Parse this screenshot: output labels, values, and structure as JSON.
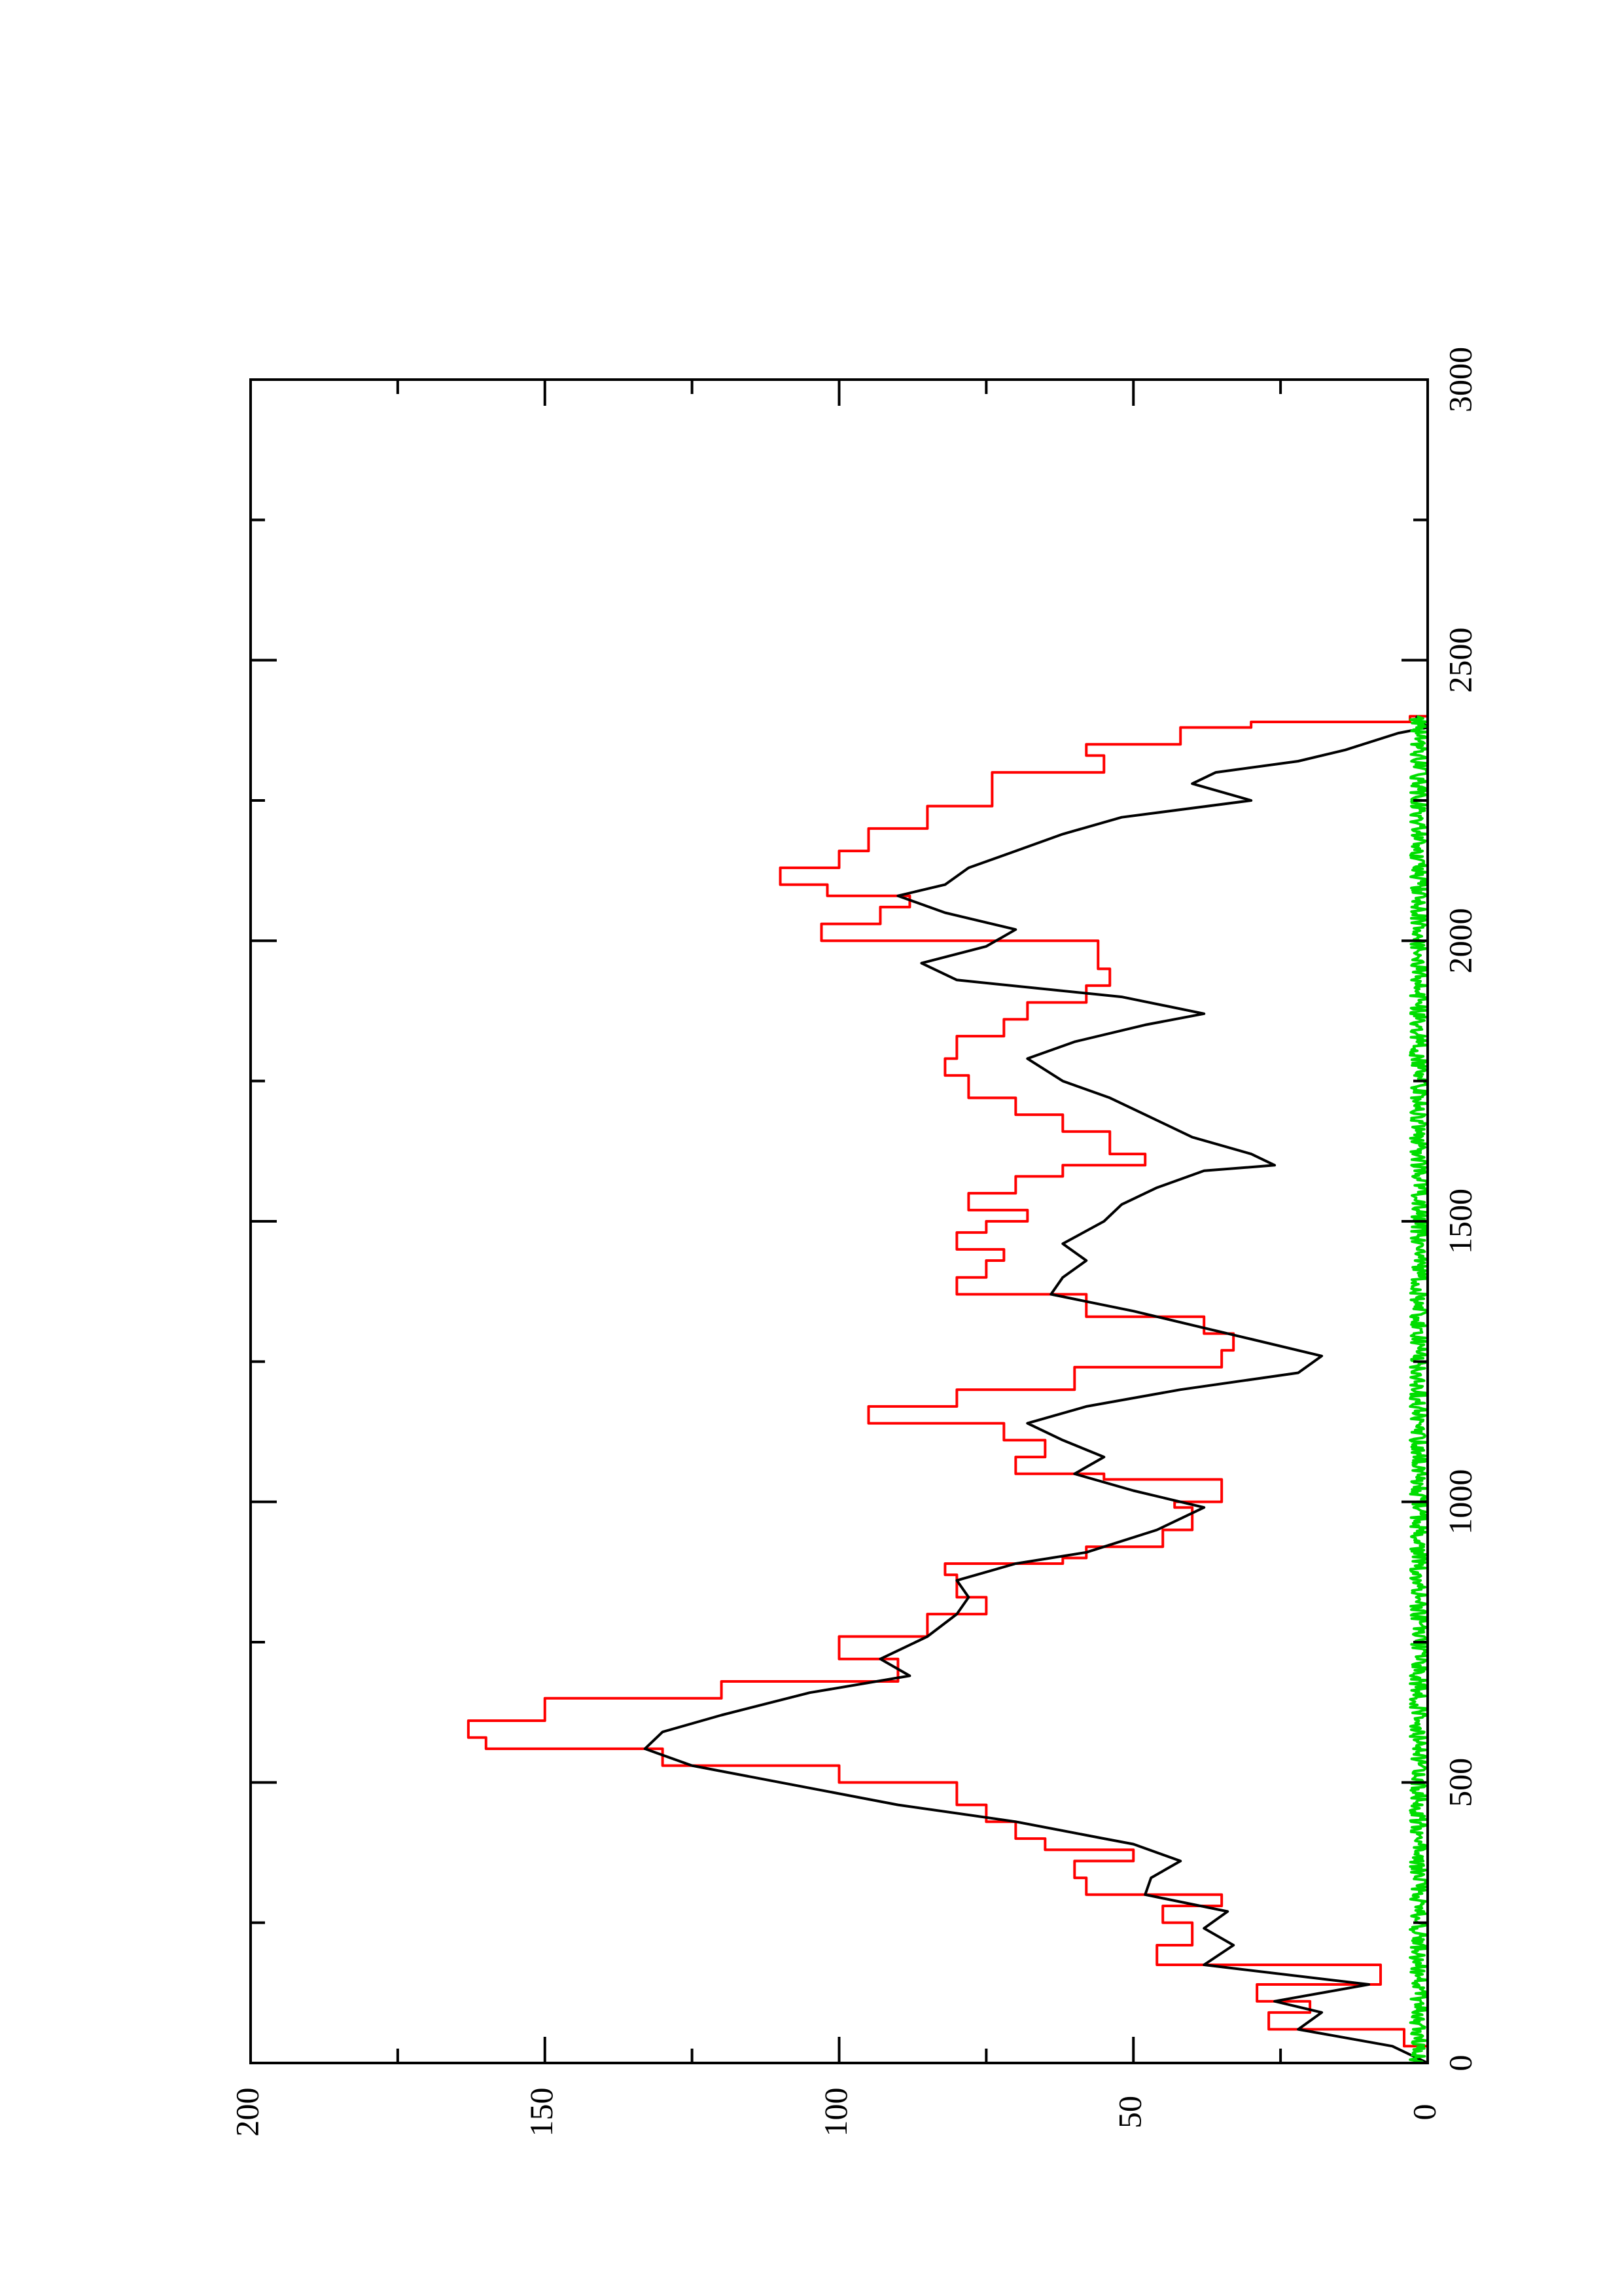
{
  "chart_data": {
    "type": "line",
    "orientation": "rotated-90-ccw",
    "title": "",
    "xlabel": "",
    "ylabel": "",
    "xlim": [
      0,
      3000
    ],
    "ylim": [
      0,
      200
    ],
    "x_ticks": [
      0,
      500,
      1000,
      1500,
      2000,
      2500,
      3000
    ],
    "y_ticks": [
      0,
      50,
      100,
      150,
      200
    ],
    "x_minor_step": 250,
    "y_minor_step": 25,
    "grid": false,
    "series": [
      {
        "color": "#ff0000",
        "style": "step",
        "points": [
          [
            0,
            0
          ],
          [
            30,
            4
          ],
          [
            60,
            27
          ],
          [
            90,
            20
          ],
          [
            110,
            29
          ],
          [
            140,
            8
          ],
          [
            175,
            46
          ],
          [
            210,
            40
          ],
          [
            250,
            45
          ],
          [
            280,
            35
          ],
          [
            300,
            58
          ],
          [
            330,
            60
          ],
          [
            360,
            50
          ],
          [
            380,
            65
          ],
          [
            400,
            70
          ],
          [
            430,
            75
          ],
          [
            460,
            80
          ],
          [
            500,
            100
          ],
          [
            530,
            130
          ],
          [
            560,
            160
          ],
          [
            580,
            163
          ],
          [
            610,
            150
          ],
          [
            650,
            120
          ],
          [
            680,
            90
          ],
          [
            720,
            100
          ],
          [
            760,
            85
          ],
          [
            800,
            75
          ],
          [
            830,
            80
          ],
          [
            870,
            82
          ],
          [
            890,
            62
          ],
          [
            900,
            58
          ],
          [
            920,
            45
          ],
          [
            950,
            40
          ],
          [
            990,
            43
          ],
          [
            1000,
            35
          ],
          [
            1040,
            55
          ],
          [
            1050,
            70
          ],
          [
            1080,
            65
          ],
          [
            1110,
            72
          ],
          [
            1140,
            95
          ],
          [
            1170,
            80
          ],
          [
            1200,
            60
          ],
          [
            1240,
            35
          ],
          [
            1270,
            33
          ],
          [
            1300,
            38
          ],
          [
            1330,
            58
          ],
          [
            1370,
            80
          ],
          [
            1400,
            75
          ],
          [
            1430,
            72
          ],
          [
            1450,
            80
          ],
          [
            1480,
            75
          ],
          [
            1500,
            68
          ],
          [
            1520,
            78
          ],
          [
            1550,
            70
          ],
          [
            1580,
            62
          ],
          [
            1600,
            48
          ],
          [
            1620,
            54
          ],
          [
            1660,
            62
          ],
          [
            1690,
            70
          ],
          [
            1720,
            78
          ],
          [
            1760,
            82
          ],
          [
            1790,
            80
          ],
          [
            1830,
            72
          ],
          [
            1860,
            68
          ],
          [
            1890,
            58
          ],
          [
            1920,
            54
          ],
          [
            1950,
            56
          ],
          [
            2000,
            103
          ],
          [
            2030,
            93
          ],
          [
            2060,
            88
          ],
          [
            2080,
            102
          ],
          [
            2100,
            110
          ],
          [
            2130,
            100
          ],
          [
            2160,
            95
          ],
          [
            2200,
            85
          ],
          [
            2240,
            74
          ],
          [
            2270,
            74
          ],
          [
            2300,
            55
          ],
          [
            2330,
            58
          ],
          [
            2350,
            42
          ],
          [
            2380,
            30
          ],
          [
            2390,
            3
          ],
          [
            2400,
            0
          ]
        ]
      },
      {
        "color": "#000000",
        "style": "line",
        "points": [
          [
            0,
            0
          ],
          [
            30,
            6
          ],
          [
            60,
            22
          ],
          [
            90,
            18
          ],
          [
            110,
            26
          ],
          [
            140,
            10
          ],
          [
            175,
            38
          ],
          [
            210,
            33
          ],
          [
            240,
            38
          ],
          [
            270,
            34
          ],
          [
            300,
            48
          ],
          [
            330,
            47
          ],
          [
            360,
            42
          ],
          [
            390,
            50
          ],
          [
            400,
            55
          ],
          [
            430,
            70
          ],
          [
            460,
            90
          ],
          [
            500,
            110
          ],
          [
            530,
            125
          ],
          [
            560,
            133
          ],
          [
            590,
            130
          ],
          [
            620,
            120
          ],
          [
            660,
            105
          ],
          [
            690,
            88
          ],
          [
            720,
            93
          ],
          [
            760,
            85
          ],
          [
            800,
            80
          ],
          [
            830,
            78
          ],
          [
            860,
            80
          ],
          [
            890,
            70
          ],
          [
            910,
            58
          ],
          [
            950,
            46
          ],
          [
            990,
            38
          ],
          [
            1020,
            50
          ],
          [
            1050,
            60
          ],
          [
            1080,
            55
          ],
          [
            1110,
            62
          ],
          [
            1140,
            68
          ],
          [
            1170,
            58
          ],
          [
            1200,
            42
          ],
          [
            1230,
            22
          ],
          [
            1260,
            18
          ],
          [
            1290,
            30
          ],
          [
            1310,
            38
          ],
          [
            1340,
            50
          ],
          [
            1370,
            64
          ],
          [
            1400,
            62
          ],
          [
            1430,
            58
          ],
          [
            1460,
            62
          ],
          [
            1500,
            55
          ],
          [
            1530,
            52
          ],
          [
            1560,
            46
          ],
          [
            1590,
            38
          ],
          [
            1600,
            26
          ],
          [
            1620,
            30
          ],
          [
            1650,
            40
          ],
          [
            1690,
            48
          ],
          [
            1720,
            54
          ],
          [
            1750,
            62
          ],
          [
            1790,
            68
          ],
          [
            1820,
            60
          ],
          [
            1850,
            48
          ],
          [
            1870,
            38
          ],
          [
            1900,
            52
          ],
          [
            1930,
            80
          ],
          [
            1960,
            86
          ],
          [
            1990,
            75
          ],
          [
            2020,
            70
          ],
          [
            2050,
            82
          ],
          [
            2080,
            90
          ],
          [
            2100,
            82
          ],
          [
            2130,
            78
          ],
          [
            2160,
            70
          ],
          [
            2190,
            62
          ],
          [
            2220,
            52
          ],
          [
            2250,
            30
          ],
          [
            2280,
            40
          ],
          [
            2300,
            36
          ],
          [
            2320,
            22
          ],
          [
            2340,
            14
          ],
          [
            2370,
            5
          ],
          [
            2380,
            0
          ],
          [
            2400,
            2
          ]
        ]
      },
      {
        "color": "#00dd00",
        "style": "noise",
        "x_range": [
          0,
          2400
        ],
        "y_range": [
          0,
          3
        ]
      }
    ]
  }
}
